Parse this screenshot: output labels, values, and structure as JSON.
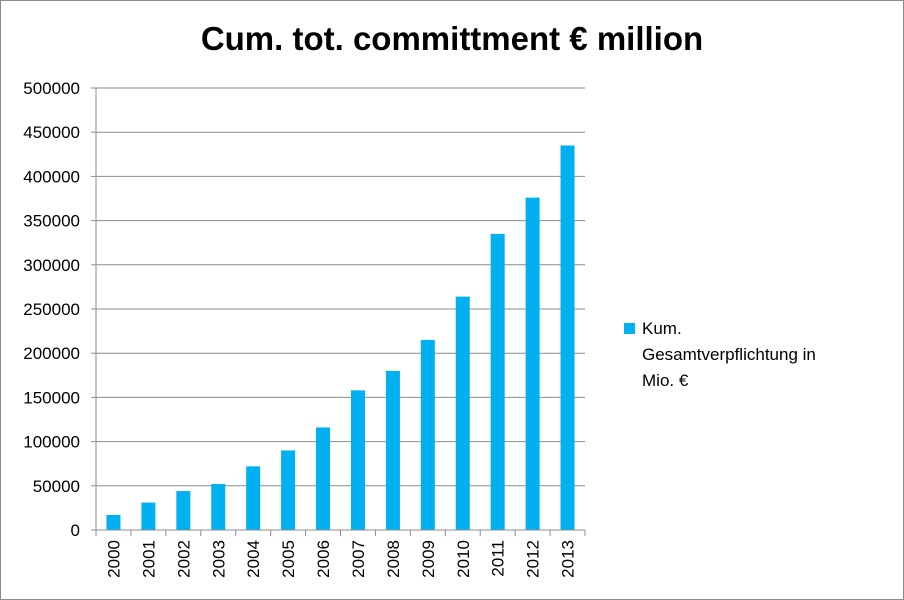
{
  "chart_data": {
    "type": "bar",
    "title": "Cum. tot. committment € million",
    "xlabel": "",
    "ylabel": "",
    "categories": [
      "2000",
      "2001",
      "2002",
      "2003",
      "2004",
      "2005",
      "2006",
      "2007",
      "2008",
      "2009",
      "2010",
      "2011",
      "2012",
      "2013"
    ],
    "series": [
      {
        "name": "Kum. Gesamtverpflichtung in Mio. €",
        "color": "#00b0f0",
        "values": [
          17000,
          31000,
          44000,
          52000,
          72000,
          90000,
          116000,
          158000,
          180000,
          215000,
          264000,
          335000,
          376000,
          435000
        ]
      }
    ],
    "ylim": [
      0,
      500000
    ],
    "yticks": [
      "0",
      "50000",
      "100000",
      "150000",
      "200000",
      "250000",
      "300000",
      "350000",
      "400000",
      "450000",
      "500000"
    ],
    "grid": true,
    "legend_position": "right"
  }
}
